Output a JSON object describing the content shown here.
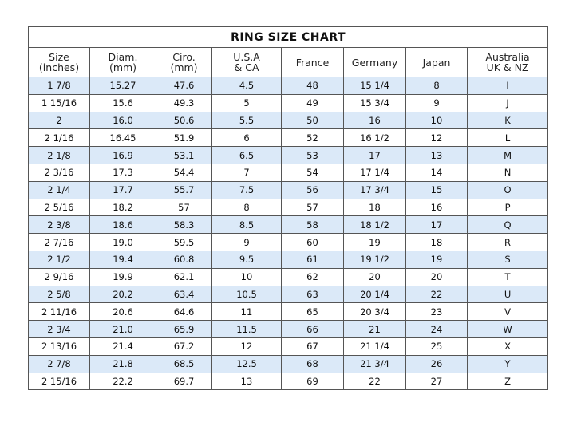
{
  "title": "RING  SIZE  CHART",
  "headers": [
    [
      "Size",
      "(inches)"
    ],
    [
      "Diam.",
      "(mm)"
    ],
    [
      "Ciro.",
      "(mm)"
    ],
    [
      "U.S.A",
      "& CA"
    ],
    [
      "France",
      ""
    ],
    [
      "Germany",
      ""
    ],
    [
      "Japan",
      ""
    ],
    [
      "Australia",
      "UK & NZ"
    ]
  ],
  "rows": [
    [
      "1 7/8",
      "15.27",
      "47.6",
      "4.5",
      "48",
      "15 1/4",
      "8",
      "I"
    ],
    [
      "1 15/16",
      "15.6",
      "49.3",
      "5",
      "49",
      "15 3/4",
      "9",
      "J"
    ],
    [
      "2",
      "16.0",
      "50.6",
      "5.5",
      "50",
      "16",
      "10",
      "K"
    ],
    [
      "2 1/16",
      "16.45",
      "51.9",
      "6",
      "52",
      "16 1/2",
      "12",
      "L"
    ],
    [
      "2 1/8",
      "16.9",
      "53.1",
      "6.5",
      "53",
      "17",
      "13",
      "M"
    ],
    [
      "2 3/16",
      "17.3",
      "54.4",
      "7",
      "54",
      "17 1/4",
      "14",
      "N"
    ],
    [
      "2 1/4",
      "17.7",
      "55.7",
      "7.5",
      "56",
      "17 3/4",
      "15",
      "O"
    ],
    [
      "2 5/16",
      "18.2",
      "57",
      "8",
      "57",
      "18",
      "16",
      "P"
    ],
    [
      "2 3/8",
      "18.6",
      "58.3",
      "8.5",
      "58",
      "18 1/2",
      "17",
      "Q"
    ],
    [
      "2 7/16",
      "19.0",
      "59.5",
      "9",
      "60",
      "19",
      "18",
      "R"
    ],
    [
      "2 1/2",
      "19.4",
      "60.8",
      "9.5",
      "61",
      "19 1/2",
      "19",
      "S"
    ],
    [
      "2 9/16",
      "19.9",
      "62.1",
      "10",
      "62",
      "20",
      "20",
      "T"
    ],
    [
      "2 5/8",
      "20.2",
      "63.4",
      "10.5",
      "63",
      "20 1/4",
      "22",
      "U"
    ],
    [
      "2 11/16",
      "20.6",
      "64.6",
      "11",
      "65",
      "20 3/4",
      "23",
      "V"
    ],
    [
      "2 3/4",
      "21.0",
      "65.9",
      "11.5",
      "66",
      "21",
      "24",
      "W"
    ],
    [
      "2 13/16",
      "21.4",
      "67.2",
      "12",
      "67",
      "21 1/4",
      "25",
      "X"
    ],
    [
      "2 7/8",
      "21.8",
      "68.5",
      "12.5",
      "68",
      "21 3/4",
      "26",
      "Y"
    ],
    [
      "2 15/16",
      "22.2",
      "69.7",
      "13",
      "69",
      "22",
      "27",
      "Z"
    ]
  ],
  "colors": {
    "row_stripe": "#dbe9f8",
    "border": "#555555"
  }
}
